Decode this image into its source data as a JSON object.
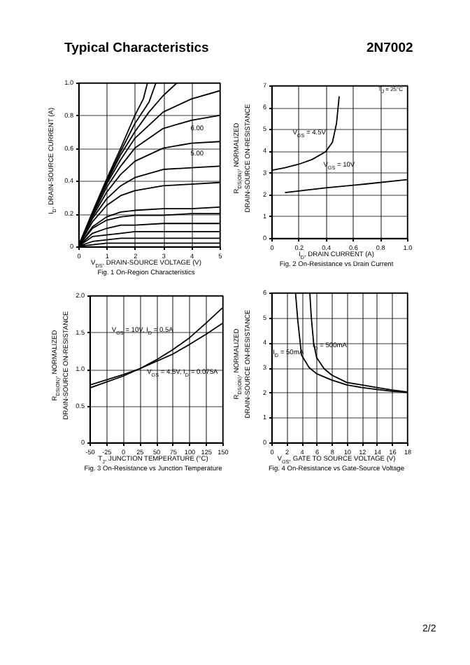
{
  "chart_data": [
    {
      "type": "other",
      "title": "Typical Characteristics",
      "annotations": [
        "2N7002",
        "2/2"
      ]
    },
    {
      "type": "line",
      "title": "Fig. 1 On-Region Characteristics",
      "xlabel": "V$_{DS}$, DRAIN-SOURCE VOLTAGE (V)",
      "ylabel": "I$_{D}$, DRAIN-SOURCE CURRENT (A)",
      "xlim": [
        0,
        5
      ],
      "xticks": [
        0,
        1,
        2,
        3,
        4,
        5
      ],
      "ylim": [
        0,
        1
      ],
      "yticks": [
        0,
        {
          "value": 0.2,
          "label": "0.2"
        },
        {
          "value": 0.4,
          "label": "0.4"
        },
        {
          "value": 0.6,
          "label": "0.6"
        },
        {
          "value": 0.8,
          "label": "0.8"
        },
        {
          "value": 1,
          "label": "1.0"
        }
      ],
      "grid": true,
      "series": [
        {
          "color": "#000000",
          "x": [
            0,
            0.5,
            1,
            1.5,
            2,
            2.3,
            2.45
          ],
          "values": [
            0,
            0.21,
            0.41,
            0.6,
            0.8,
            0.9,
            1
          ]
        },
        {
          "color": "#000000",
          "x": [
            0,
            0.5,
            1,
            1.5,
            2,
            2.5,
            2.75
          ],
          "values": [
            0,
            0.2,
            0.4,
            0.58,
            0.75,
            0.88,
            1
          ]
        },
        {
          "color": "#000000",
          "x": [
            0,
            0.5,
            1,
            1.5,
            2,
            2.5,
            3,
            3.5
          ],
          "values": [
            0,
            0.2,
            0.39,
            0.56,
            0.7,
            0.82,
            0.92,
            1
          ]
        },
        {
          "color": "#000000",
          "x": [
            0,
            0.5,
            1,
            1.5,
            2,
            3,
            4,
            5
          ],
          "values": [
            0,
            0.2,
            0.38,
            0.53,
            0.66,
            0.82,
            0.9,
            0.95
          ]
        },
        {
          "color": "#000000",
          "x": [
            0,
            0.5,
            1,
            1.5,
            2,
            3,
            4,
            5
          ],
          "values": [
            0,
            0.19,
            0.36,
            0.49,
            0.6,
            0.72,
            0.77,
            0.8
          ]
        },
        {
          "color": "#000000",
          "x": [
            0,
            0.5,
            1,
            1.5,
            2,
            3,
            4,
            5
          ],
          "values": [
            0,
            0.18,
            0.33,
            0.44,
            0.52,
            0.6,
            0.63,
            0.64
          ]
        },
        {
          "color": "#000000",
          "x": [
            0,
            0.5,
            1,
            1.5,
            2,
            3,
            4,
            5
          ],
          "values": [
            0,
            0.17,
            0.29,
            0.37,
            0.42,
            0.47,
            0.48,
            0.49
          ]
        },
        {
          "color": "#000000",
          "x": [
            0,
            0.5,
            1,
            1.5,
            2,
            3,
            4,
            5
          ],
          "values": [
            0,
            0.15,
            0.25,
            0.31,
            0.34,
            0.37,
            0.38,
            0.39
          ]
        },
        {
          "color": "#000000",
          "x": [
            0,
            0.5,
            1,
            1.5,
            2,
            3,
            4,
            5
          ],
          "values": [
            0,
            0.12,
            0.18,
            0.21,
            0.22,
            0.23,
            0.23,
            0.24
          ]
        },
        {
          "color": "#000000",
          "x": [
            0,
            0.5,
            1,
            1.5,
            2,
            3,
            4,
            5
          ],
          "values": [
            0,
            0.11,
            0.16,
            0.18,
            0.19,
            0.19,
            0.2,
            0.2
          ]
        },
        {
          "color": "#000000",
          "x": [
            0,
            0.5,
            1,
            1.5,
            2,
            3,
            4,
            5
          ],
          "values": [
            0,
            0.08,
            0.11,
            0.13,
            0.13,
            0.14,
            0.14,
            0.14
          ]
        },
        {
          "color": "#000000",
          "x": [
            0,
            0.5,
            1,
            1.5,
            2,
            3,
            4,
            5
          ],
          "values": [
            0,
            0.06,
            0.07,
            0.08,
            0.09,
            0.09,
            0.09,
            0.09
          ]
        },
        {
          "color": "#000000",
          "x": [
            0,
            0.5,
            1,
            1.5,
            2,
            3,
            4,
            5
          ],
          "values": [
            0,
            0.03,
            0.04,
            0.05,
            0.05,
            0.05,
            0.05,
            0.05
          ]
        },
        {
          "color": "#000000",
          "x": [
            0,
            0.5,
            1,
            1.5,
            2,
            3,
            4,
            5
          ],
          "values": [
            0,
            0.01,
            0.02,
            0.02,
            0.02,
            0.02,
            0.02,
            0.02
          ]
        }
      ],
      "annotations": [
        "6.00",
        "5.00"
      ]
    },
    {
      "type": "line",
      "title": "Fig. 2 On-Resistance vs Drain Current",
      "xlabel": "I$_{D}$, DRAIN CURRENT (A)",
      "ylabel": "R$_{DS(ON)}$, NORMALIZED\nDRAIN-SOURCE ON-RESISTANCE",
      "xlim": [
        0,
        1
      ],
      "xticks": [
        0,
        {
          "value": 0.2,
          "label": "0.2"
        },
        {
          "value": 0.4,
          "label": "0.4"
        },
        {
          "value": 0.6,
          "label": "0.6"
        },
        {
          "value": 0.8,
          "label": "0.8"
        },
        {
          "value": 1,
          "label": "1.0"
        }
      ],
      "ylim": [
        0,
        7
      ],
      "yticks": [
        0,
        1,
        2,
        3,
        4,
        5,
        6,
        7
      ],
      "grid": true,
      "series": [
        {
          "color": "#000000",
          "x": [
            0,
            0.1,
            0.2,
            0.3,
            0.4,
            0.45,
            0.48,
            0.5
          ],
          "values": [
            3.1,
            3.22,
            3.38,
            3.6,
            3.96,
            4.39,
            5.25,
            6.5
          ]
        },
        {
          "color": "#000000",
          "x": [
            0.1,
            0.4,
            0.7,
            1
          ],
          "values": [
            2.08,
            2.3,
            2.48,
            2.68
          ]
        }
      ],
      "annotations": [
        "T$_{J}$ = 25°C",
        "V$_{GS}$ = 4.5V",
        "V$_{GS}$ = 10V"
      ]
    },
    {
      "type": "line",
      "title": "Fig. 3 On-Resistance vs Junction Temperature",
      "xlabel": "T$_{J}$, JUNCTION TEMPERATURE (°C)",
      "ylabel": "R$_{DS(ON)}$, NORMALIZED\nDRAIN-SOURCE ON-RESISTANCE",
      "xlim": [
        -50,
        150
      ],
      "xticks": [
        -50,
        -25,
        0,
        25,
        50,
        75,
        100,
        125,
        150
      ],
      "ylim": [
        0,
        2
      ],
      "yticks": [
        0,
        {
          "value": 0.5,
          "label": "0.5"
        },
        {
          "value": 1,
          "label": "1.0"
        },
        {
          "value": 1.5,
          "label": "1.5"
        },
        {
          "value": 2,
          "label": "2.0"
        }
      ],
      "grid": true,
      "series": [
        {
          "color": "#000000",
          "x": [
            -50,
            0,
            25,
            50,
            75,
            100,
            125,
            150
          ],
          "values": [
            0.74,
            0.9,
            1,
            1.12,
            1.26,
            1.42,
            1.62,
            1.83
          ]
        },
        {
          "color": "#000000",
          "x": [
            -50,
            0,
            25,
            50,
            75,
            100,
            125,
            150
          ],
          "values": [
            0.78,
            0.92,
            1,
            1.1,
            1.2,
            1.33,
            1.47,
            1.62
          ]
        }
      ],
      "annotations": [
        "V$_{GS}$ = 10V, I$_{D}$ = 0.5A",
        "V$_{GS}$ = 4.5V, I$_{D}$ = 0.075A"
      ]
    },
    {
      "type": "line",
      "title": "Fig. 4 On-Resistance vs Gate-Source Voltage",
      "xlabel": "V$_{GS}$, GATE TO SOURCE VOLTAGE (V)",
      "ylabel": "R$_{DS(ON)}$, NORMALIZED\nDRAIN-SOURCE ON-RESISTANCE",
      "xlim": [
        0,
        18
      ],
      "xticks": [
        0,
        2,
        4,
        6,
        8,
        10,
        12,
        14,
        16,
        18
      ],
      "ylim": [
        0,
        6
      ],
      "yticks": [
        0,
        1,
        2,
        3,
        4,
        5,
        6
      ],
      "grid": true,
      "series": [
        {
          "color": "#000000",
          "x": [
            3.2,
            3.5,
            4,
            5,
            6,
            8,
            10,
            12,
            14,
            16,
            18
          ],
          "values": [
            6,
            4.9,
            3.5,
            3,
            2.75,
            2.5,
            2.3,
            2.2,
            2.12,
            2.05,
            2
          ]
        },
        {
          "color": "#000000",
          "x": [
            5.1,
            5.3,
            5.6,
            6,
            7,
            8,
            10,
            12,
            14,
            16,
            18
          ],
          "values": [
            6,
            5,
            4,
            3.4,
            2.95,
            2.7,
            2.4,
            2.3,
            2.2,
            2.1,
            2.02
          ]
        }
      ],
      "annotations": [
        "I$_{D}$ = 50mA",
        "I$_{D}$ = 500mA"
      ]
    }
  ]
}
